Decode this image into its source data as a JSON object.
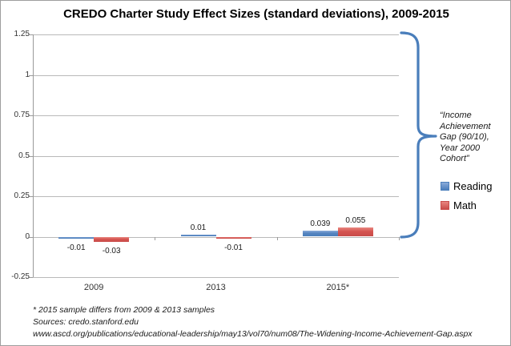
{
  "title": "CREDO Charter Study Effect Sizes (standard deviations), 2009-2015",
  "chart_data": {
    "type": "bar",
    "categories": [
      "2009",
      "2013",
      "2015*"
    ],
    "series": [
      {
        "name": "Reading",
        "color": "#4a7ebb",
        "color_light": "#8aabd9",
        "values": [
          -0.01,
          0.01,
          0.039
        ]
      },
      {
        "name": "Math",
        "color": "#c84c4a",
        "color_light": "#e88680",
        "values": [
          -0.03,
          -0.01,
          0.055
        ]
      }
    ],
    "data_labels": [
      [
        "-0.01",
        "0.01",
        "0.039"
      ],
      [
        "-0.03",
        "-0.01",
        "0.055"
      ]
    ],
    "ylim": [
      -0.25,
      1.25
    ],
    "ytick_step": 0.25,
    "ytick_labels": [
      "-0.25",
      "0",
      "0.25",
      "0.5",
      "0.75",
      "1",
      "1.25"
    ],
    "grid": true,
    "legend_position": "right"
  },
  "annotation": {
    "brace_label": "“Income Achievement Gap (90/10), Year 2000 Cohort”",
    "brace_color": "#4a7ebb"
  },
  "legend": {
    "items": [
      {
        "label": "Reading",
        "color": "#4a7ebb",
        "color_light": "#8aabd9"
      },
      {
        "label": "Math",
        "color": "#c84c4a",
        "color_light": "#e88680"
      }
    ]
  },
  "footnotes": [
    "* 2015 sample differs from 2009 & 2013 samples",
    "Sources: credo.stanford.edu",
    "www.ascd.org/publications/educational-leadership/may13/vol70/num08/The-Widening-Income-Achievement-Gap.aspx"
  ]
}
